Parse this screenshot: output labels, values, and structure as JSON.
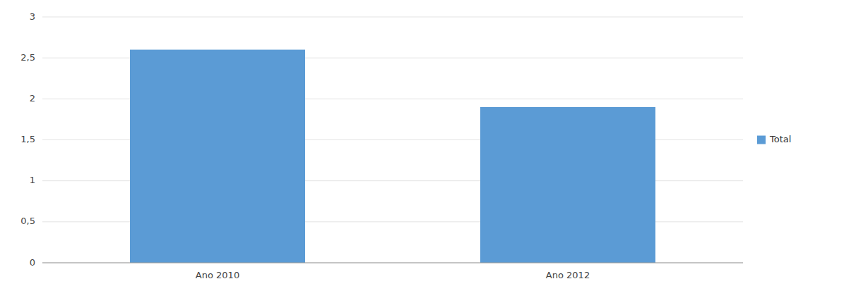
{
  "chart_data": {
    "type": "bar",
    "categories": [
      "Ano 2010",
      "Ano 2012"
    ],
    "series": [
      {
        "name": "Total",
        "color": "#5B9BD5",
        "values": [
          2.6,
          1.9
        ]
      }
    ],
    "ylim": [
      0,
      3
    ],
    "yticks": [
      0,
      {
        "value": 0.5,
        "label": "0,5"
      },
      1,
      {
        "value": 1.5,
        "label": "1,5"
      },
      2,
      {
        "value": 2.5,
        "label": "2,5"
      },
      3
    ],
    "grid": true,
    "legend": "right"
  }
}
